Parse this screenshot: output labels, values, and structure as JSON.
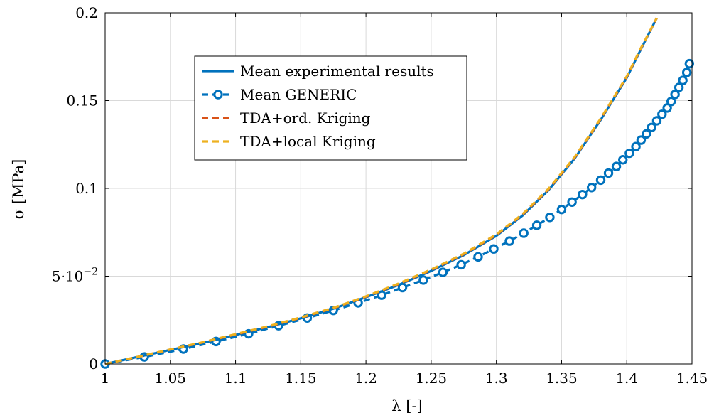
{
  "chart_data": {
    "type": "line",
    "xlabel": "λ [-]",
    "ylabel": "σ [MPa]",
    "xlim": [
      1,
      1.45
    ],
    "ylim": [
      0,
      0.2
    ],
    "x_ticks": [
      1,
      1.05,
      1.1,
      1.15,
      1.2,
      1.25,
      1.3,
      1.35,
      1.4,
      1.45
    ],
    "x_tick_labels": [
      "1",
      "1.05",
      "1.1",
      "1.15",
      "1.2",
      "1.25",
      "1.3",
      "1.35",
      "1.4",
      "1.45"
    ],
    "y_ticks": [
      0,
      0.05,
      0.1,
      0.15,
      0.2
    ],
    "y_tick_labels": [
      "0",
      "5·10",
      "0.1",
      "0.15",
      "0.2"
    ],
    "y_tick_exponent": "−2",
    "grid": true,
    "legend_position": "upper-left",
    "series": [
      {
        "name": "Mean experimental results",
        "color": "#0072bd",
        "style": "solid",
        "x": [
          1.0,
          1.025,
          1.05,
          1.075,
          1.1,
          1.125,
          1.15,
          1.175,
          1.2,
          1.225,
          1.25,
          1.275,
          1.3,
          1.32,
          1.34,
          1.36,
          1.38,
          1.4,
          1.41,
          1.423
        ],
        "y": [
          0,
          0.004,
          0.008,
          0.012,
          0.0165,
          0.021,
          0.026,
          0.0315,
          0.038,
          0.045,
          0.053,
          0.062,
          0.073,
          0.0845,
          0.099,
          0.117,
          0.139,
          0.163,
          0.178,
          0.197
        ]
      },
      {
        "name": "Mean GENERIC",
        "color": "#0072bd",
        "style": "dashed-circle-markers",
        "x": [
          1.0,
          1.03,
          1.06,
          1.085,
          1.11,
          1.133,
          1.155,
          1.175,
          1.194,
          1.212,
          1.228,
          1.244,
          1.259,
          1.273,
          1.286,
          1.298,
          1.31,
          1.321,
          1.331,
          1.341,
          1.35,
          1.358,
          1.366,
          1.373,
          1.38,
          1.386,
          1.392,
          1.397,
          1.402,
          1.407,
          1.411,
          1.415,
          1.419,
          1.423,
          1.427,
          1.431,
          1.434,
          1.437,
          1.44,
          1.443,
          1.446,
          1.448
        ],
        "y": [
          0,
          0.004,
          0.0085,
          0.0128,
          0.0172,
          0.0218,
          0.0262,
          0.0305,
          0.0348,
          0.0392,
          0.0435,
          0.0478,
          0.0522,
          0.0565,
          0.061,
          0.0655,
          0.07,
          0.0745,
          0.079,
          0.0835,
          0.088,
          0.0922,
          0.0965,
          0.1005,
          0.1047,
          0.1087,
          0.1125,
          0.1163,
          0.12,
          0.1238,
          0.1275,
          0.131,
          0.1347,
          0.1385,
          0.1422,
          0.1458,
          0.1495,
          0.1535,
          0.1575,
          0.1615,
          0.166,
          0.171
        ]
      },
      {
        "name": "TDA+ord. Kriging",
        "color": "#d95319",
        "style": "dashed",
        "x": [
          1.0,
          1.025,
          1.05,
          1.075,
          1.1,
          1.125,
          1.15,
          1.175,
          1.2,
          1.225,
          1.25,
          1.275,
          1.3,
          1.32,
          1.34,
          1.36,
          1.38,
          1.4,
          1.41,
          1.423
        ],
        "y": [
          0,
          0.004,
          0.0082,
          0.0123,
          0.0168,
          0.0213,
          0.0263,
          0.0318,
          0.0383,
          0.0455,
          0.0535,
          0.0625,
          0.0735,
          0.085,
          0.0995,
          0.1175,
          0.1395,
          0.1635,
          0.1785,
          0.197
        ]
      },
      {
        "name": "TDA+local Kriging",
        "color": "#edb120",
        "style": "dashed",
        "x": [
          1.0,
          1.025,
          1.05,
          1.075,
          1.1,
          1.125,
          1.15,
          1.175,
          1.2,
          1.225,
          1.25,
          1.275,
          1.3,
          1.32,
          1.34,
          1.36,
          1.38,
          1.4,
          1.41,
          1.423
        ],
        "y": [
          0,
          0.0041,
          0.0083,
          0.0124,
          0.017,
          0.0215,
          0.0265,
          0.032,
          0.0385,
          0.0458,
          0.0538,
          0.0628,
          0.0738,
          0.0853,
          0.0998,
          0.1178,
          0.1398,
          0.1638,
          0.1788,
          0.197
        ]
      }
    ]
  }
}
